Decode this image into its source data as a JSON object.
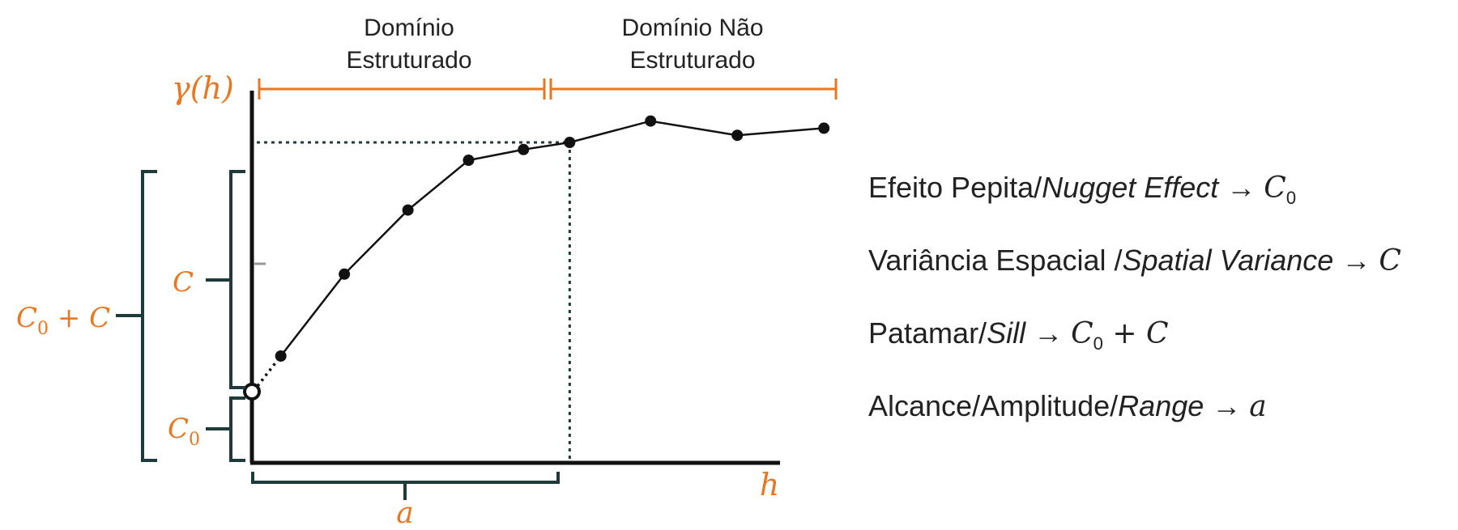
{
  "diagram": {
    "y_axis_label": "γ(h)",
    "x_axis_label": "h",
    "domains": {
      "structured_line1": "Domínio",
      "structured_line2": "Estruturado",
      "unstructured_line1": "Domínio Não",
      "unstructured_line2": "Estruturado"
    },
    "brackets": {
      "c0_plus_c": {
        "base": "C",
        "sub": "0",
        "rest": " + C"
      },
      "c": "C",
      "c0": {
        "base": "C",
        "sub": "0"
      },
      "a": "a"
    },
    "colors": {
      "accent": "#E87722",
      "bracket": "#1E3A3A",
      "curve": "#111111",
      "text": "#222222"
    }
  },
  "chart_data": {
    "type": "line",
    "title": "",
    "xlabel": "h",
    "ylabel": "γ(h)",
    "nugget_point": {
      "x": 0,
      "y": 0.2
    },
    "x": [
      0.5,
      1.6,
      2.7,
      3.75,
      4.7,
      5.5,
      6.9,
      8.4,
      9.9
    ],
    "y": [
      0.3,
      0.53,
      0.71,
      0.85,
      0.88,
      0.9,
      0.96,
      0.92,
      0.94
    ],
    "sill": 0.9,
    "range": 5.5,
    "xlim": [
      0,
      10.5
    ],
    "ylim": [
      0,
      1.05
    ]
  },
  "legend": {
    "nugget": {
      "pt": "Efeito Pepita/",
      "en": "Nugget Effect",
      "arrow": " → ",
      "sym": "C",
      "sub": "0",
      "rest": ""
    },
    "spatial_variance": {
      "pt": "Variância Espacial /",
      "en": "Spatial Variance",
      "arrow": " → ",
      "sym": "C"
    },
    "sill": {
      "pt": "Patamar/",
      "en": "Sill",
      "arrow": " → ",
      "sym": "C",
      "sub": "0",
      "rest": " + C"
    },
    "range": {
      "pt": "Alcance/Amplitude/",
      "en": "Range",
      "arrow": " → ",
      "sym": "a"
    }
  }
}
